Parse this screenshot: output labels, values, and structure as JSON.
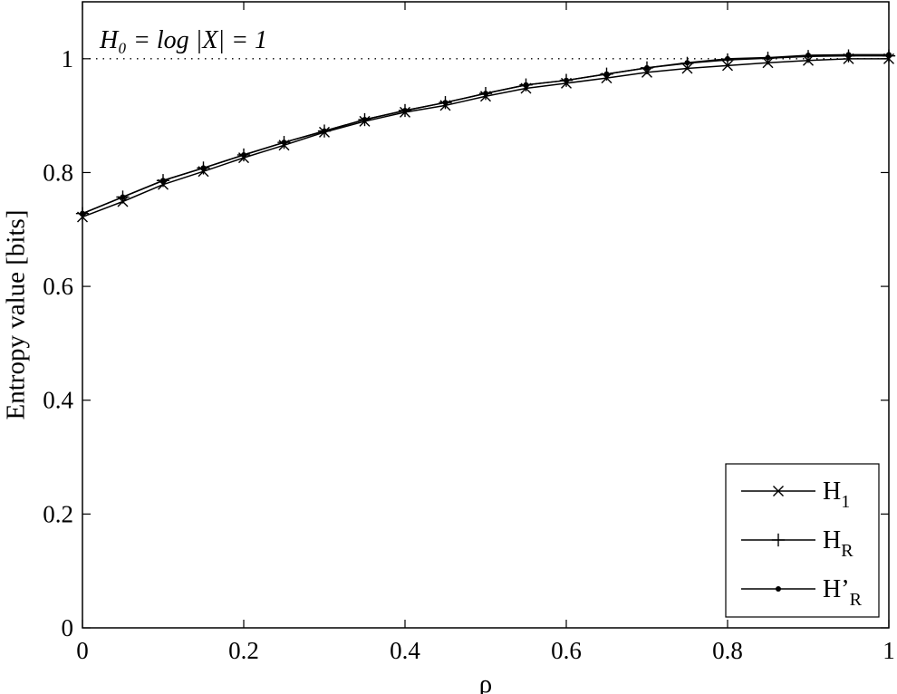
{
  "chart_data": {
    "type": "line",
    "title": "",
    "xlabel": "ρ",
    "ylabel": "Entropy value [bits]",
    "xlim": [
      0,
      1
    ],
    "ylim": [
      0,
      1.1
    ],
    "xticks": [
      "0",
      "0.2",
      "0.4",
      "0.6",
      "0.8",
      "1"
    ],
    "yticks": [
      "0",
      "0.2",
      "0.4",
      "0.6",
      "0.8",
      "1"
    ],
    "grid": false,
    "legend_position": "bottom-right",
    "annotations": [
      {
        "text": "H₀ = log |X| = 1",
        "y": 1,
        "style": "dotted"
      }
    ],
    "x": [
      0,
      0.05,
      0.1,
      0.15,
      0.2,
      0.25,
      0.3,
      0.35,
      0.4,
      0.45,
      0.5,
      0.55,
      0.6,
      0.65,
      0.7,
      0.75,
      0.8,
      0.85,
      0.9,
      0.95,
      1
    ],
    "series": [
      {
        "name": "H1",
        "marker": "x",
        "values": [
          0.722,
          0.749,
          0.779,
          0.802,
          0.826,
          0.848,
          0.871,
          0.89,
          0.906,
          0.918,
          0.934,
          0.948,
          0.957,
          0.966,
          0.976,
          0.983,
          0.988,
          0.993,
          0.997,
          1.0,
          1.0
        ]
      },
      {
        "name": "HR",
        "marker": "+",
        "values": [
          0.728,
          0.757,
          0.786,
          0.808,
          0.831,
          0.853,
          0.873,
          0.893,
          0.909,
          0.923,
          0.939,
          0.954,
          0.962,
          0.973,
          0.984,
          0.992,
          0.998,
          1.001,
          1.004,
          1.005,
          1.005
        ]
      },
      {
        "name": "H'R",
        "marker": "dot",
        "values": [
          0.728,
          0.757,
          0.786,
          0.808,
          0.831,
          0.853,
          0.873,
          0.893,
          0.909,
          0.923,
          0.939,
          0.954,
          0.962,
          0.973,
          0.984,
          0.993,
          1.0,
          1.002,
          1.006,
          1.007,
          1.007
        ]
      }
    ]
  },
  "legend": {
    "entries": [
      {
        "base": "H",
        "prime": "",
        "sub": "1"
      },
      {
        "base": "H",
        "prime": "",
        "sub": "R"
      },
      {
        "base": "H",
        "prime": "’",
        "sub": "R"
      }
    ]
  }
}
